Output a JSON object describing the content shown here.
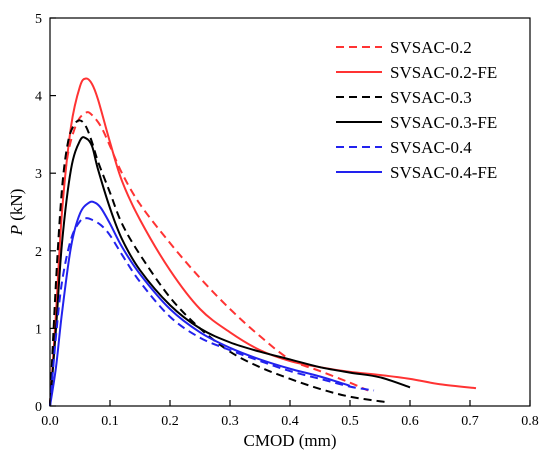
{
  "chart_data": {
    "type": "line",
    "title": "",
    "xlabel": "CMOD (mm)",
    "ylabel_symbol": "P",
    "ylabel_unit": " (kN)",
    "xlim": [
      0,
      0.8
    ],
    "ylim": [
      0,
      5
    ],
    "xticks": [
      "0.0",
      "0.1",
      "0.2",
      "0.3",
      "0.4",
      "0.5",
      "0.6",
      "0.7",
      "0.8"
    ],
    "yticks": [
      "0",
      "1",
      "2",
      "3",
      "4",
      "5"
    ],
    "grid": false,
    "legend_position": "top-right",
    "series": [
      {
        "name": "SVSAC-0.2",
        "color": "#ff3333",
        "dash": "dashed",
        "x": [
          0,
          0.01,
          0.02,
          0.03,
          0.045,
          0.06,
          0.07,
          0.085,
          0.1,
          0.12,
          0.15,
          0.2,
          0.25,
          0.3,
          0.35,
          0.4,
          0.45,
          0.5,
          0.53
        ],
        "y": [
          0,
          1.5,
          2.6,
          3.25,
          3.65,
          3.78,
          3.75,
          3.6,
          3.35,
          3.0,
          2.6,
          2.1,
          1.65,
          1.25,
          0.9,
          0.6,
          0.45,
          0.3,
          0.2
        ]
      },
      {
        "name": "SVSAC-0.2-FE",
        "color": "#ff3333",
        "dash": "solid",
        "x": [
          0,
          0.01,
          0.02,
          0.035,
          0.05,
          0.06,
          0.07,
          0.08,
          0.1,
          0.12,
          0.15,
          0.2,
          0.25,
          0.3,
          0.35,
          0.4,
          0.45,
          0.5,
          0.55,
          0.6,
          0.65,
          0.71
        ],
        "y": [
          0,
          1.2,
          2.5,
          3.6,
          4.12,
          4.22,
          4.15,
          3.95,
          3.4,
          2.9,
          2.4,
          1.75,
          1.25,
          0.95,
          0.72,
          0.58,
          0.5,
          0.44,
          0.4,
          0.35,
          0.28,
          0.23
        ]
      },
      {
        "name": "SVSAC-0.3",
        "color": "#000000",
        "dash": "dashed",
        "x": [
          0,
          0.01,
          0.02,
          0.03,
          0.04,
          0.05,
          0.06,
          0.07,
          0.08,
          0.1,
          0.12,
          0.15,
          0.2,
          0.25,
          0.3,
          0.35,
          0.4,
          0.45,
          0.5,
          0.56
        ],
        "y": [
          0,
          1.6,
          2.8,
          3.4,
          3.62,
          3.68,
          3.6,
          3.4,
          3.15,
          2.75,
          2.35,
          1.95,
          1.4,
          1.0,
          0.7,
          0.5,
          0.35,
          0.22,
          0.12,
          0.05
        ]
      },
      {
        "name": "SVSAC-0.3-FE",
        "color": "#000000",
        "dash": "solid",
        "x": [
          0,
          0.01,
          0.02,
          0.035,
          0.05,
          0.06,
          0.07,
          0.08,
          0.1,
          0.12,
          0.15,
          0.2,
          0.25,
          0.3,
          0.35,
          0.4,
          0.45,
          0.5,
          0.55,
          0.6
        ],
        "y": [
          0,
          1.0,
          2.1,
          3.05,
          3.42,
          3.45,
          3.35,
          3.05,
          2.55,
          2.15,
          1.75,
          1.3,
          1.0,
          0.82,
          0.7,
          0.6,
          0.5,
          0.43,
          0.37,
          0.24
        ]
      },
      {
        "name": "SVSAC-0.4",
        "color": "#2222ee",
        "dash": "dashed",
        "x": [
          0,
          0.01,
          0.02,
          0.035,
          0.05,
          0.06,
          0.07,
          0.085,
          0.1,
          0.12,
          0.15,
          0.2,
          0.25,
          0.3,
          0.35,
          0.4,
          0.45,
          0.5,
          0.54
        ],
        "y": [
          0,
          0.9,
          1.6,
          2.15,
          2.38,
          2.42,
          2.4,
          2.33,
          2.2,
          1.95,
          1.6,
          1.15,
          0.88,
          0.72,
          0.58,
          0.45,
          0.35,
          0.25,
          0.2
        ]
      },
      {
        "name": "SVSAC-0.4-FE",
        "color": "#2222ee",
        "dash": "solid",
        "x": [
          0,
          0.01,
          0.02,
          0.035,
          0.05,
          0.065,
          0.075,
          0.085,
          0.1,
          0.12,
          0.15,
          0.2,
          0.25,
          0.3,
          0.35,
          0.4,
          0.45,
          0.5
        ],
        "y": [
          0,
          0.5,
          1.2,
          2.05,
          2.48,
          2.62,
          2.62,
          2.55,
          2.35,
          2.05,
          1.7,
          1.25,
          0.95,
          0.75,
          0.6,
          0.48,
          0.38,
          0.26
        ]
      }
    ]
  }
}
